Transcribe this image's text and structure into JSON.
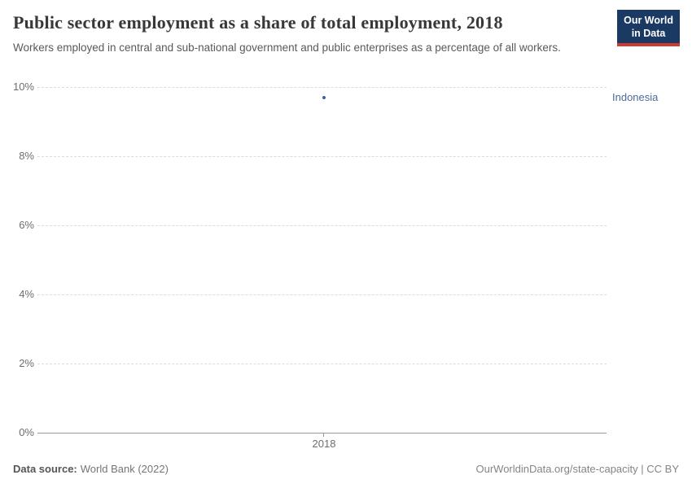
{
  "header": {
    "title": "Public sector employment as a share of total employment, 2018",
    "subtitle": "Workers employed in central and sub-national government and public enterprises as a percentage of all workers.",
    "logo": {
      "line1": "Our World",
      "line2": "in Data"
    }
  },
  "chart_data": {
    "type": "scatter",
    "title": "Public sector employment as a share of total employment, 2018",
    "x": [
      2018
    ],
    "series": [
      {
        "name": "Indonesia",
        "values": [
          9.7
        ]
      }
    ],
    "ylim": [
      0,
      10
    ],
    "ytick_labels": [
      "10%",
      "8%",
      "6%",
      "4%",
      "2%",
      "0%"
    ],
    "xtick_labels": [
      "2018"
    ],
    "xlabel": "",
    "ylabel": "",
    "grid": "horizontal-dashed",
    "legend_position": "right-of-point",
    "point_color": "#3d6499",
    "series_label_color": "#4c6a9c"
  },
  "footer": {
    "source_label": "Data source:",
    "source_value": "World Bank (2022)",
    "link": "OurWorldinData.org/state-capacity | CC BY"
  }
}
